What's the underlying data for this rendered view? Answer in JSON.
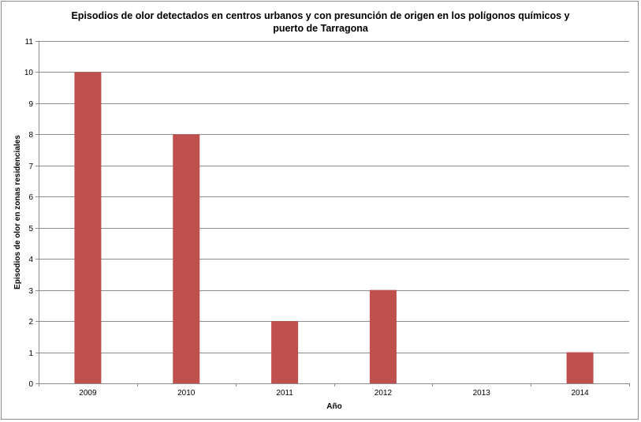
{
  "chart_data": {
    "type": "bar",
    "title_line1": "Episodios de olor detectados en centros urbanos y con presunción de origen en los polígonos químicos y",
    "title_line2": "puerto de Tarragona",
    "xlabel": "Año",
    "ylabel": "Episodios de olor en zonas residenciales",
    "categories": [
      "2009",
      "2010",
      "2011",
      "2012",
      "2013",
      "2014"
    ],
    "values": [
      10,
      8,
      2,
      3,
      0,
      1
    ],
    "ylim": [
      0,
      11
    ],
    "yticks": [
      "0",
      "1",
      "2",
      "3",
      "4",
      "5",
      "6",
      "7",
      "8",
      "9",
      "10",
      "11"
    ],
    "grid": true,
    "legend": "none",
    "bar_color": "#c0504d",
    "grid_color": "#8c8c8c"
  }
}
